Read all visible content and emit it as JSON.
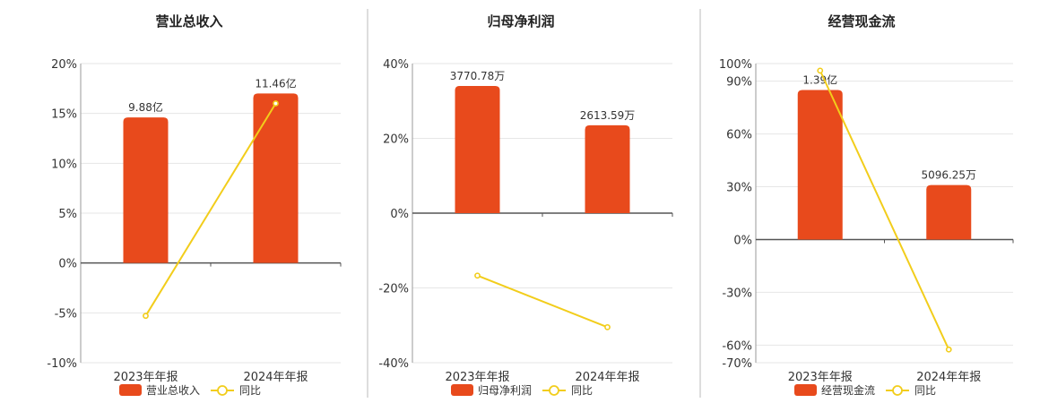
{
  "colors": {
    "bar": "#E84A1C",
    "line": "#F2CD1B",
    "grid": "#E6E6E6",
    "axis": "#555555",
    "divider": "#BBBBBB"
  },
  "chart_data": [
    {
      "type": "bar",
      "title": "营业总收入",
      "categories": [
        "2023年年报",
        "2024年年报"
      ],
      "series": [
        {
          "name": "营业总收入",
          "type": "bar",
          "values": [
            14.6,
            17.0
          ],
          "labels": [
            "9.88亿",
            "11.46亿"
          ]
        },
        {
          "name": "同比",
          "type": "line",
          "values": [
            -5.3,
            16.0
          ]
        }
      ],
      "y_ticks": [
        "20%",
        "15%",
        "10%",
        "5%",
        "0%",
        "-5%",
        "-10%"
      ],
      "ylim": [
        -10,
        20
      ],
      "tick_values": [
        20,
        15,
        10,
        5,
        0,
        -5,
        -10
      ],
      "legend": "bottom"
    },
    {
      "type": "bar",
      "title": "归母净利润",
      "categories": [
        "2023年年报",
        "2024年年报"
      ],
      "series": [
        {
          "name": "归母净利润",
          "type": "bar",
          "values": [
            34.0,
            23.5
          ],
          "labels": [
            "3770.78万",
            "2613.59万"
          ]
        },
        {
          "name": "同比",
          "type": "line",
          "values": [
            -16.7,
            -30.5
          ]
        }
      ],
      "y_ticks": [
        "40%",
        "20%",
        "0%",
        "-20%",
        "-40%"
      ],
      "ylim": [
        -40,
        40
      ],
      "tick_values": [
        40,
        20,
        0,
        -20,
        -40
      ],
      "legend": "bottom"
    },
    {
      "type": "bar",
      "title": "经营现金流",
      "categories": [
        "2023年年报",
        "2024年年报"
      ],
      "series": [
        {
          "name": "经营现金流",
          "type": "bar",
          "values": [
            85.0,
            31.0
          ],
          "labels": [
            "1.39亿",
            "5096.25万"
          ]
        },
        {
          "name": "同比",
          "type": "line",
          "values": [
            96.0,
            -62.5
          ]
        }
      ],
      "y_ticks": [
        "100%",
        "90%",
        "60%",
        "30%",
        "0%",
        "-30%",
        "-60%",
        "-70%"
      ],
      "ylim": [
        -70,
        100
      ],
      "tick_values": [
        100,
        90,
        60,
        30,
        0,
        -30,
        -60,
        -70
      ],
      "legend": "bottom"
    }
  ]
}
